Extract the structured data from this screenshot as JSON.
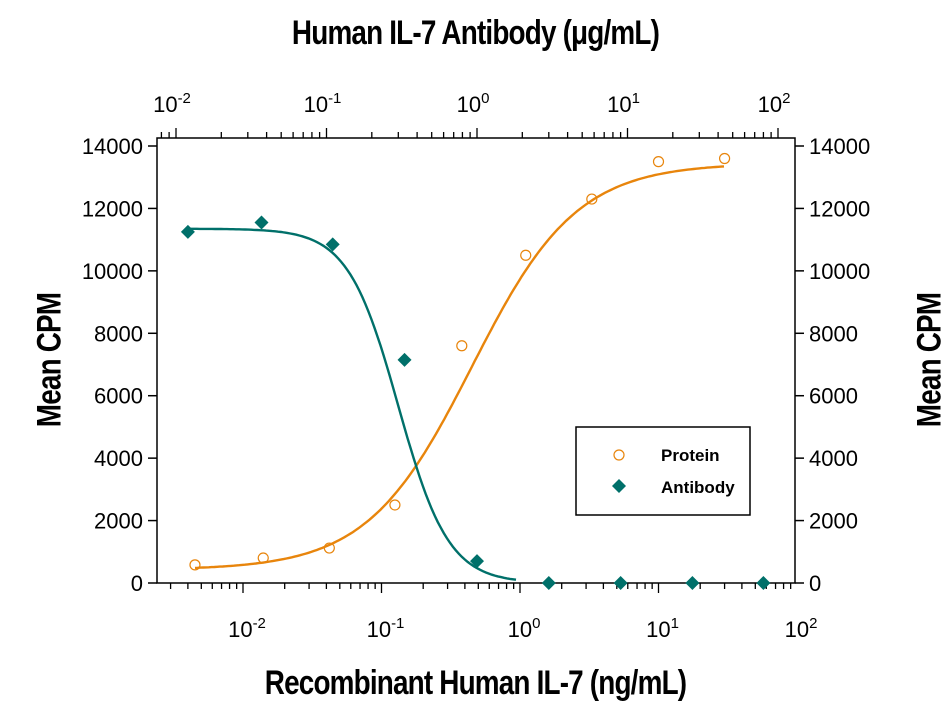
{
  "chart_data": {
    "type": "scatter",
    "title": "Human IL-7 Antibody (μg/mL)",
    "xlabel": "Recombinant Human IL-7 (ng/mL)",
    "x2label": "Human IL-7 Antibody (μg/mL)",
    "ylabel": "Mean CPM",
    "y2label": "Mean CPM",
    "xscale": "log",
    "xlim": [
      0.0025,
      100
    ],
    "x2lim": [
      0.008,
      100
    ],
    "ylim": [
      0,
      14000
    ],
    "yticks": [
      0,
      2000,
      4000,
      6000,
      8000,
      10000,
      12000,
      14000
    ],
    "xticks": [
      "10^-2",
      "10^-1",
      "10^0",
      "10^1",
      "10^2"
    ],
    "x2ticks": [
      "10^-2",
      "10^-1",
      "10^0",
      "10^1",
      "10^2"
    ],
    "grid": false,
    "legend_position": "lower right (inside)",
    "series": [
      {
        "name": "Protein",
        "axis": "bottom",
        "marker": "open-circle",
        "color": "#E8850C",
        "x": [
          0.0045,
          0.014,
          0.042,
          0.125,
          0.38,
          1.1,
          3.3,
          10,
          30
        ],
        "y": [
          580,
          800,
          1120,
          2500,
          7600,
          10500,
          12300,
          13500,
          13600
        ],
        "fit": "sigmoidal 4PL, bottom≈450, top≈13450, EC50≈0.45 ng/mL"
      },
      {
        "name": "Antibody",
        "axis": "top",
        "marker": "filled-diamond",
        "color": "#00706A",
        "x": [
          0.012,
          0.037,
          0.11,
          0.33,
          1.0,
          3.0,
          9.0,
          27,
          80
        ],
        "y": [
          11250,
          11550,
          10850,
          7150,
          700,
          0,
          0,
          0,
          0
        ],
        "fit": "sigmoidal 4PL, top≈11350, bottom≈0, IC50≈0.33 μg/mL"
      }
    ]
  },
  "labels": {
    "top_title": "Human IL-7 Antibody (μg/mL)",
    "bottom_title": "Recombinant Human IL-7 (ng/mL)",
    "y_left": "Mean CPM",
    "y_right": "Mean CPM",
    "legend_protein": "Protein",
    "legend_antibody": "Antibody"
  }
}
